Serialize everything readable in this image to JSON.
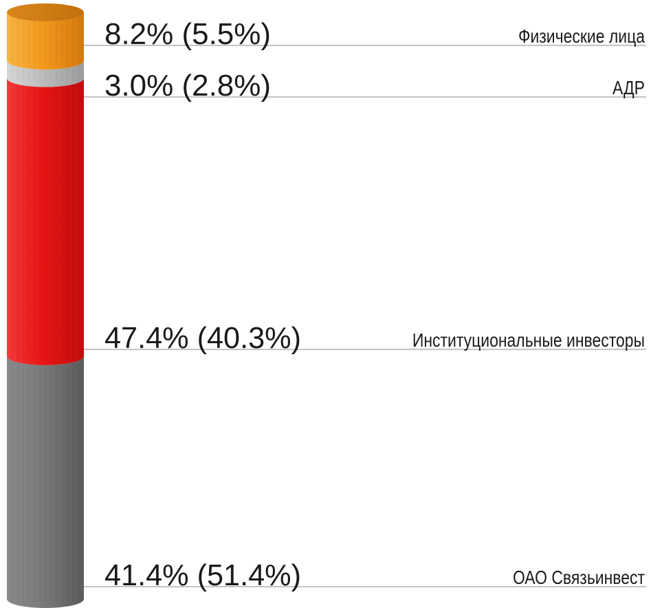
{
  "chart_data": {
    "type": "bar",
    "orientation": "stacked-cylinder",
    "categories": [
      "Физические лица",
      "АДР",
      "Институциональные инвесторы",
      "ОАО Связьинвест"
    ],
    "series": [
      {
        "values": [
          8.2,
          3.0,
          47.4,
          41.4
        ]
      },
      {
        "values": [
          5.5,
          2.8,
          40.3,
          51.4
        ]
      }
    ],
    "labels": [
      "8.2% (5.5%)",
      "3.0% (2.8%)",
      "47.4% (40.3%)",
      "41.4% (51.4%)"
    ],
    "colors": [
      "#f39a1c",
      "#bdbdbd",
      "#ea1c1c",
      "#757575"
    ],
    "ylim": [
      0,
      100
    ],
    "grid": false,
    "legend": "none"
  }
}
